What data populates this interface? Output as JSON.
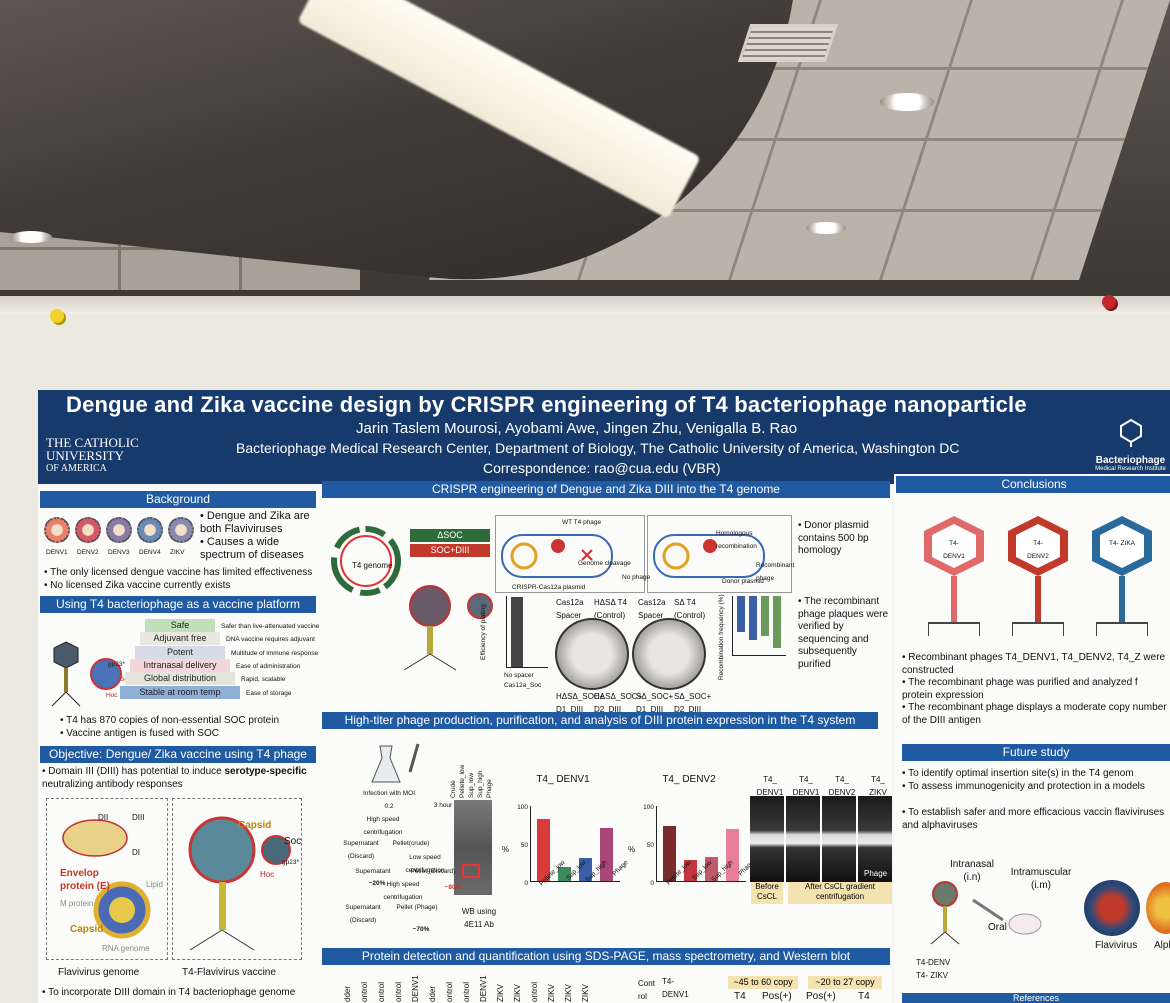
{
  "poster": {
    "title": "Dengue and Zika vaccine design by CRISPR engineering of T4 bacteriophage nanoparticle",
    "authors": "Jarin Taslem Mourosi, Ayobami Awe, Jingen Zhu, Venigalla B. Rao",
    "affiliation": "Bacteriophage Medical Research Center, Department of Biology, The Catholic University of America, Washington DC",
    "correspondence": "Correspondence: rao@cua.edu (VBR)",
    "logo_left": [
      "THE CATHOLIC",
      "UNIVERSITY",
      "OF AMERICA"
    ],
    "logo_right": {
      "name": "Bacteriophage",
      "sub": "Medical Research Institute"
    }
  },
  "background": {
    "heading": "Background",
    "virus_labels": [
      "DENV1",
      "DENV2",
      "DENV3",
      "DENV4",
      "ZIKV"
    ],
    "bullets_right": [
      "Dengue and Zika are both Flaviviruses",
      "Causes a wide spectrum of diseases"
    ],
    "bullets": [
      "The only licensed dengue vaccine has limited effectiveness",
      "No licensed Zika vaccine currently exists"
    ]
  },
  "platform": {
    "heading": "Using T4 bacteriophage as a vaccine platform",
    "ladder": [
      {
        "label": "Safe",
        "note": "Safer than live-attenuated vaccine",
        "color": "#bfe0b8"
      },
      {
        "label": "Adjuvant free",
        "note": "DNA vaccine requires adjuvant",
        "color": "#e9e7e2"
      },
      {
        "label": "Potent",
        "note": "Multitude of immune response",
        "color": "#d6dbe6"
      },
      {
        "label": "Intranasal delivery",
        "note": "Ease of administration",
        "color": "#f2d6da"
      },
      {
        "label": "Global distribution",
        "note": "Rapid, scalable",
        "color": "#e6e3dc"
      },
      {
        "label": "Stable at room temp",
        "note": "Ease of storage",
        "color": "#8fb0d6"
      }
    ],
    "labels": [
      "gp23*",
      "Soc",
      "Hoc"
    ],
    "bullets": [
      "T4 has 870 copies of non-essential SOC protein",
      "Vaccine antigen is fused with SOC"
    ]
  },
  "objective": {
    "heading": "Objective: Dengue/ Zika vaccine using T4 phage",
    "text_pre": "Domain III (DIII) has potential to induce ",
    "text_bold": "serotype-specific",
    "text_post": " neutralizing antibody responses",
    "left_labels": [
      "DII",
      "DIII",
      "DI",
      "Envelop protein (E)",
      "Lipid",
      "M protein",
      "Capsid",
      "RNA genome"
    ],
    "right_labels": [
      "Capsid",
      "Soc",
      "gp23*",
      "Hoc"
    ],
    "captions": [
      "Flavivirus genome",
      "T4-Flavivirus vaccine"
    ],
    "bullet": "To incorporate DIII domain in T4 bacteriophage genome"
  },
  "crispr": {
    "heading": "CRISPR engineering of Dengue and Zika DIII into the T4 genome",
    "labels": [
      "T4 genome",
      "ΔSOC",
      "SOC+DIII",
      "WT T4 phage",
      "Cas12a",
      "Genome cleavage",
      "No phage",
      "CRISPR-Cas12a plasmid",
      "Homologous recombination",
      "Recombinant phage",
      "Donor plasmid"
    ],
    "plate_headers": [
      "Cas12a Spacer",
      "HΔSΔ T4 (Control)",
      "Cas12a Spacer",
      "SΔ T4 (Control)"
    ],
    "plate_captions": [
      "HΔSΔ_SOC+ D1_DIII",
      "HΔSΔ_SOC+ D2_DIII",
      "SΔ_SOC+ D1_DIII",
      "SΔ_SOC+ D2_DIII"
    ],
    "left_chart": {
      "ylabel": "Efficiency of plating",
      "cats": [
        "No spacer",
        "Cas12a_Soc"
      ]
    },
    "right_chart": {
      "ylabel": "Recombination frequency (%)"
    },
    "notes": [
      "Donor plasmid contains 500 bp homology",
      "The recombinant phage plaques were verified by sequencing and subsequently purified"
    ]
  },
  "production": {
    "heading": "High-titer phage production, purification, and analysis of DIII protein expression in the T4 system",
    "flow": [
      "Infection with MOI 0.2",
      "3 hour",
      "High speed centrifugation",
      "Supernatant (Discard)",
      "Pellet(crude)",
      "Low speed centrifugation",
      "Supernatant",
      "~20%",
      "Pellet (Discard)",
      "~80%",
      "High speed centrifugation",
      "Supernatant (Discard)",
      "Pellet (Phage)",
      "~70%"
    ],
    "gel_lanes": [
      "Crude",
      "Pellete_low",
      "Sup_low",
      "Sup_high",
      "Phage"
    ],
    "gel_caption": "WB using 4E11 Ab",
    "tubes_labels": [
      "T4_ DENV1",
      "T4_ DENV1",
      "T4_ DENV2",
      "T4_ ZIKV"
    ],
    "tubes_captions": [
      "Before CsCL",
      "After CsCL gradient centrifugation",
      "Phage"
    ]
  },
  "chart_data": [
    {
      "type": "bar",
      "title": "T4_ DENV1",
      "categories": [
        "Pellete_low",
        "Sup_low",
        "Sup_high",
        "Phage"
      ],
      "values": [
        81,
        18,
        30,
        70
      ],
      "ylabel": "%",
      "ylim": [
        0,
        100
      ]
    },
    {
      "type": "bar",
      "title": "T4_ DENV2",
      "categories": [
        "Pelete_low",
        "Sup_low",
        "Sup_high",
        "Phage"
      ],
      "values": [
        73,
        27,
        32,
        68
      ],
      "ylabel": "%",
      "ylim": [
        0,
        100
      ]
    }
  ],
  "bar_colors": [
    "#d93a3a",
    "#3e8a5c",
    "#3a5fa6",
    "#a9467a"
  ],
  "bar_colors2": [
    "#7a2a2a",
    "#c0383d",
    "#c05a6a",
    "#e87d9a"
  ],
  "detection": {
    "heading": "Protein detection and quantification using SDS-PAGE, mass spectrometry, and Western blot",
    "lane_labels": [
      "dder",
      "ontrol",
      "ontrol",
      "ontrol",
      "DENV1",
      "dder",
      "ontrol",
      "ontrol",
      "DENV1",
      "ZIKV",
      "ZIKV",
      "ontrol",
      "ZIKV",
      "ZIKV",
      "ZIKV"
    ],
    "right": [
      "Cont rol",
      "T4- DENV1",
      "ontrol",
      "~45 to 60 copy",
      "~20 to 27 copy",
      "T4",
      "Pos(+)",
      "Pos(+)",
      "T4"
    ]
  },
  "conclusions": {
    "heading": "Conclusions",
    "phages": [
      "T4- DENV1",
      "T4- DENV2",
      "T4- ZIKA"
    ],
    "bullets": [
      "Recombinant phages T4_DENV1, T4_DENV2, T4_Z were constructed",
      "The recombinant phage was purified and analyzed f protein expression",
      "The recombinant phage displays a moderate copy number of the DIII antigen"
    ]
  },
  "future": {
    "heading": "Future study",
    "bullets": [
      "To identify optimal insertion site(s) in the T4 genom",
      "To assess immunogenicity and protection in a models",
      "To establish safer and more efficacious vaccin flaviviruses and alphaviruses"
    ],
    "labels": [
      "Intranasal (i.n)",
      "Intramuscular (i.m)",
      "Oral",
      "T4-DENV T4- ZIKV",
      "Flavivirus",
      "Alpl"
    ]
  },
  "references": {
    "heading": "References"
  }
}
